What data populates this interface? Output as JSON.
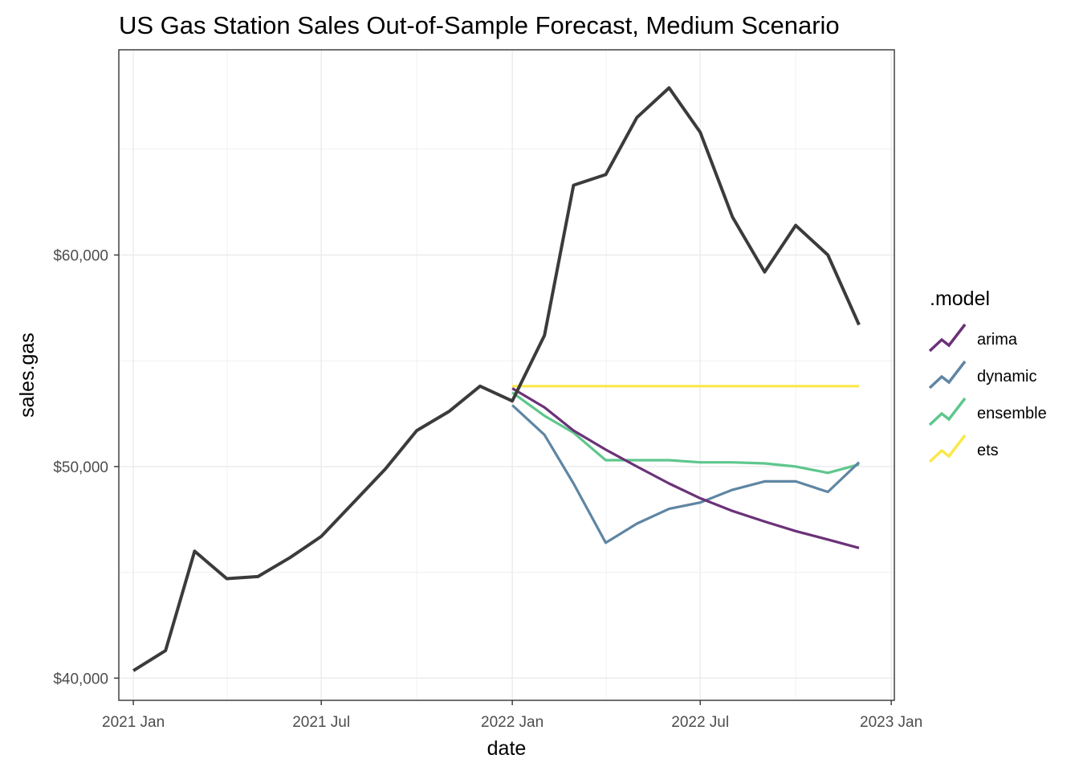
{
  "chart_data": {
    "type": "line",
    "title": "US Gas Station Sales Out-of-Sample Forecast, Medium Scenario",
    "xlabel": "date",
    "ylabel": "sales.gas",
    "xlim": [
      "2020-12-18",
      "2023-01-04"
    ],
    "ylim": [
      38950,
      69700
    ],
    "x_ticks": [
      {
        "date": "2021-01-01",
        "label": "2021 Jan"
      },
      {
        "date": "2021-07-01",
        "label": "2021 Jul"
      },
      {
        "date": "2022-01-01",
        "label": "2022 Jan"
      },
      {
        "date": "2022-07-01",
        "label": "2022 Jul"
      },
      {
        "date": "2023-01-01",
        "label": "2023 Jan"
      }
    ],
    "y_ticks": [
      {
        "value": 40000,
        "label": "$40,000"
      },
      {
        "value": 50000,
        "label": "$50,000"
      },
      {
        "value": 60000,
        "label": "$60,000"
      }
    ],
    "y_minor": [
      45000,
      55000,
      65000
    ],
    "grid": true,
    "legend_position": "right",
    "legend_title": ".model",
    "actual": {
      "color": "#3b3b3b",
      "x": [
        "2021-01-01",
        "2021-02-01",
        "2021-03-01",
        "2021-04-01",
        "2021-05-01",
        "2021-06-01",
        "2021-07-01",
        "2021-08-01",
        "2021-09-01",
        "2021-10-01",
        "2021-11-01",
        "2021-12-01",
        "2022-01-01",
        "2022-02-01",
        "2022-03-01",
        "2022-04-01",
        "2022-05-01",
        "2022-06-01",
        "2022-07-01",
        "2022-08-01",
        "2022-09-01",
        "2022-10-01",
        "2022-11-01",
        "2022-12-01"
      ],
      "y": [
        40350,
        41300,
        46000,
        44700,
        44800,
        45700,
        46700,
        48300,
        49900,
        51700,
        52600,
        53800,
        53100,
        56200,
        63300,
        63800,
        66500,
        67900,
        65800,
        61800,
        59200,
        61400,
        60000,
        56700
      ]
    },
    "series": [
      {
        "name": "arima",
        "color": "#6b3278",
        "x": [
          "2022-01-01",
          "2022-02-01",
          "2022-03-01",
          "2022-04-01",
          "2022-05-01",
          "2022-06-01",
          "2022-07-01",
          "2022-08-01",
          "2022-09-01",
          "2022-10-01",
          "2022-11-01",
          "2022-12-01"
        ],
        "y": [
          53700,
          52800,
          51700,
          50800,
          50000,
          49200,
          48500,
          47900,
          47400,
          46950,
          46550,
          46150
        ]
      },
      {
        "name": "dynamic",
        "color": "#5f86a3",
        "x": [
          "2022-01-01",
          "2022-02-01",
          "2022-03-01",
          "2022-04-01",
          "2022-05-01",
          "2022-06-01",
          "2022-07-01",
          "2022-08-01",
          "2022-09-01",
          "2022-10-01",
          "2022-11-01",
          "2022-12-01"
        ],
        "y": [
          52900,
          51500,
          49200,
          46400,
          47300,
          48000,
          48300,
          48900,
          49300,
          49300,
          48800,
          50200
        ]
      },
      {
        "name": "ensemble",
        "color": "#5ec78d",
        "x": [
          "2022-01-01",
          "2022-02-01",
          "2022-03-01",
          "2022-04-01",
          "2022-05-01",
          "2022-06-01",
          "2022-07-01",
          "2022-08-01",
          "2022-09-01",
          "2022-10-01",
          "2022-11-01",
          "2022-12-01"
        ],
        "y": [
          53500,
          52400,
          51600,
          50300,
          50300,
          50300,
          50200,
          50200,
          50150,
          50000,
          49700,
          50100
        ]
      },
      {
        "name": "ets",
        "color": "#fae84b",
        "x": [
          "2022-01-01",
          "2022-02-01",
          "2022-03-01",
          "2022-04-01",
          "2022-05-01",
          "2022-06-01",
          "2022-07-01",
          "2022-08-01",
          "2022-09-01",
          "2022-10-01",
          "2022-11-01",
          "2022-12-01"
        ],
        "y": [
          53800,
          53800,
          53800,
          53800,
          53800,
          53800,
          53800,
          53800,
          53800,
          53800,
          53800,
          53800
        ]
      }
    ]
  }
}
